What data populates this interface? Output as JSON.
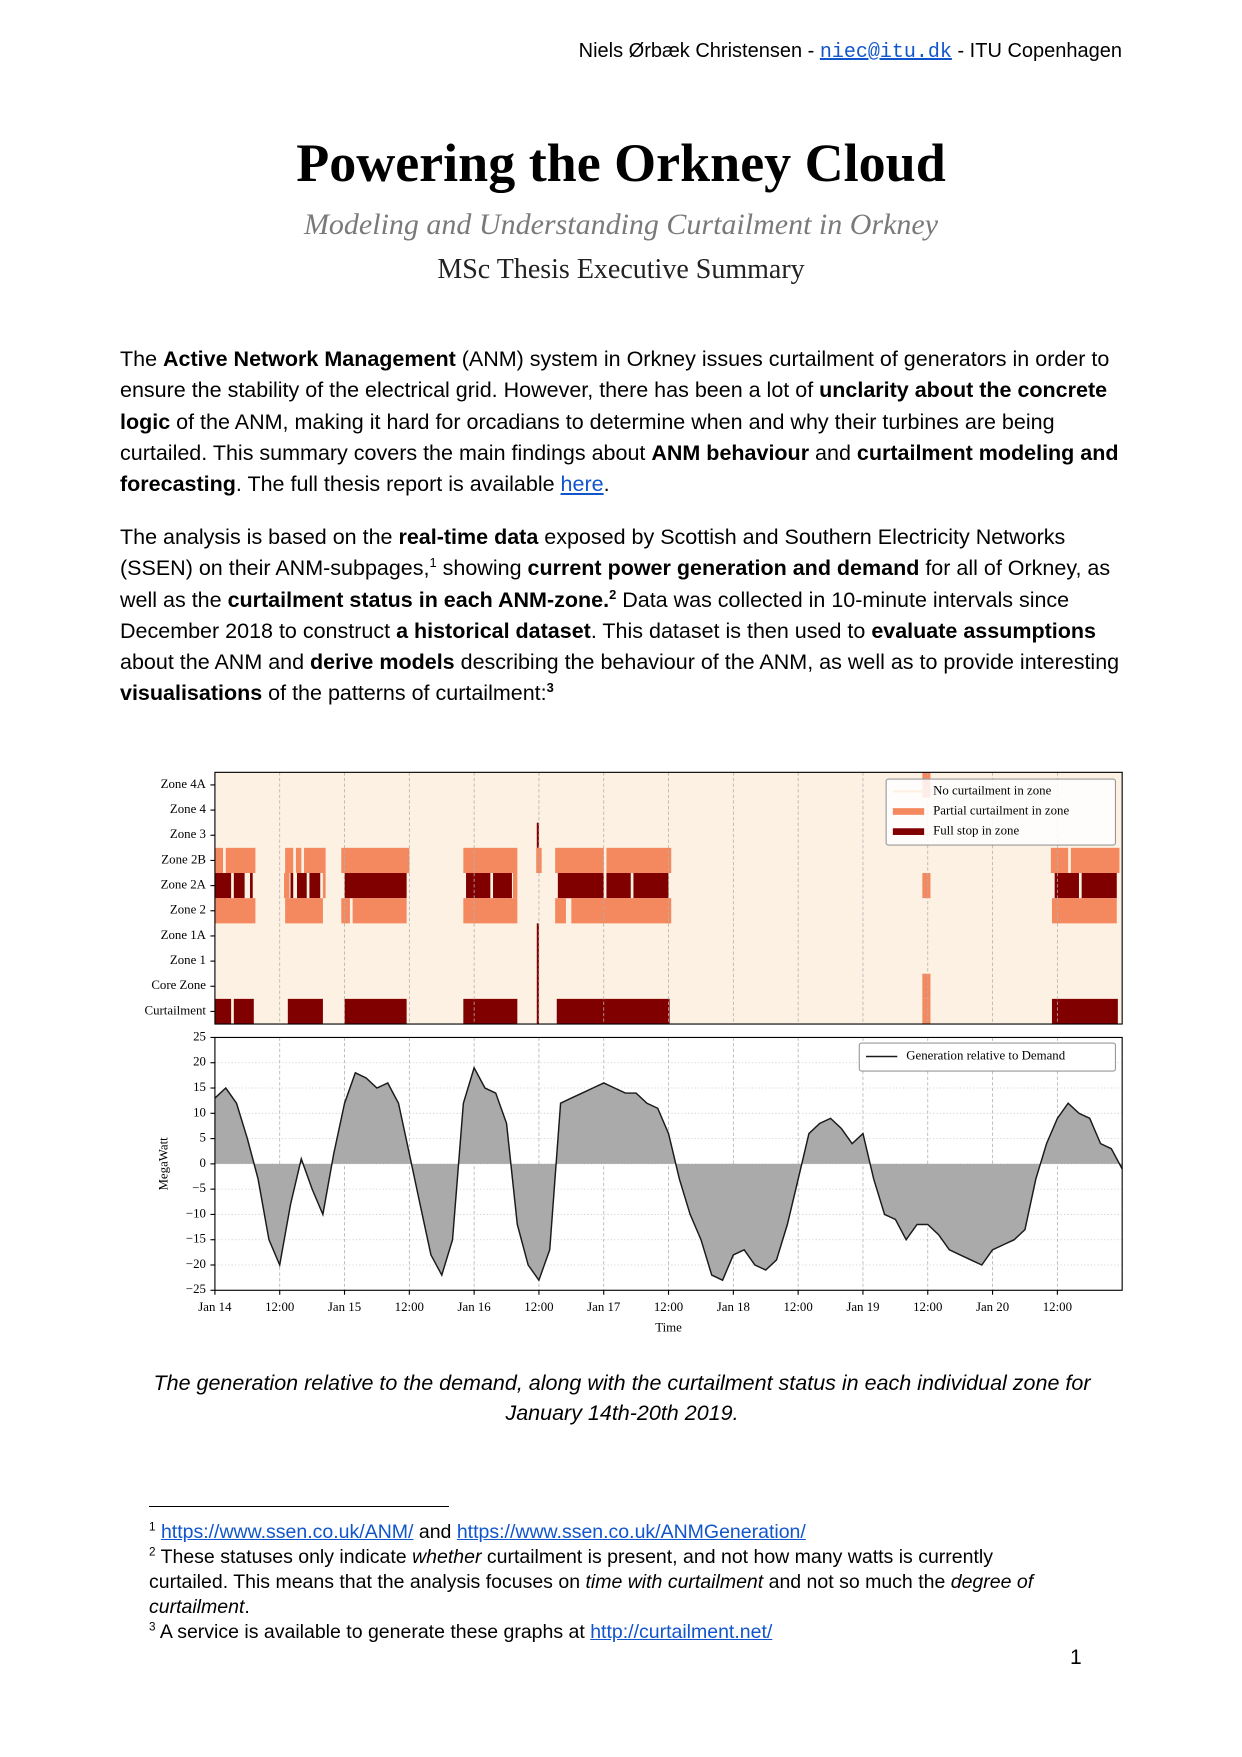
{
  "header": [
    {
      "text": "Niels Ørbæk Christensen - "
    },
    {
      "text": "niec@itu.dk",
      "link": true,
      "mono": true
    },
    {
      "text": " - ITU Copenhagen"
    }
  ],
  "title": "Powering the Orkney Cloud",
  "subtitle": "Modeling and Understanding Curtailment in Orkney",
  "kicker": "MSc Thesis Executive Summary",
  "paragraphs": [
    [
      {
        "text": "The "
      },
      {
        "text": "Active Network Management",
        "bold": true
      },
      {
        "text": " (ANM) system in Orkney issues curtailment of generators in order to ensure the stability of the electrical grid. However, there has been a lot of "
      },
      {
        "text": "unclarity about the concrete logic",
        "bold": true
      },
      {
        "text": " of the ANM, making it hard for orcadians to determine when and why their turbines are being curtailed. This summary covers the main findings about "
      },
      {
        "text": "ANM behaviour",
        "bold": true
      },
      {
        "text": " and "
      },
      {
        "text": "curtailment modeling and forecasting",
        "bold": true
      },
      {
        "text": ". The full thesis report is available "
      },
      {
        "text": "here",
        "link": true
      },
      {
        "text": "."
      }
    ],
    [
      {
        "text": "The analysis is based on the "
      },
      {
        "text": "real-time data",
        "bold": true
      },
      {
        "text": " exposed by Scottish and Southern Electricity Networks (SSEN) on their ANM-subpages,"
      },
      {
        "text": "1",
        "sup": true
      },
      {
        "text": " showing "
      },
      {
        "text": "current power generation and demand",
        "bold": true
      },
      {
        "text": " for all of Orkney, as well as the "
      },
      {
        "text": "curtailment status in each ANM-zone.",
        "bold": true
      },
      {
        "text": "2",
        "sup": true,
        "bold": true
      },
      {
        "text": " Data was collected in 10-minute intervals since December 2018 to construct "
      },
      {
        "text": "a historical dataset",
        "bold": true
      },
      {
        "text": ". This dataset is then used to "
      },
      {
        "text": "evaluate assumptions",
        "bold": true
      },
      {
        "text": " about the ANM and "
      },
      {
        "text": "derive models",
        "bold": true
      },
      {
        "text": " describing the behaviour of the ANM, as well as to provide interesting "
      },
      {
        "text": "visualisations",
        "bold": true
      },
      {
        "text": " of the patterns of curtailment:"
      },
      {
        "text": "3",
        "sup": true,
        "bold": true
      }
    ]
  ],
  "chart_data": [
    {
      "type": "heatmap",
      "xlim": [
        0,
        168
      ],
      "xticks": [
        0,
        12,
        24,
        36,
        48,
        60,
        72,
        84,
        96,
        108,
        120,
        132,
        144,
        156
      ],
      "grid": true,
      "legend": [
        {
          "name": "No curtailment in zone",
          "status": 0,
          "color": "#fdf1e3"
        },
        {
          "name": "Partial curtailment in zone",
          "status": 1,
          "color": "#f4895f"
        },
        {
          "name": "Full stop in zone",
          "status": 2,
          "color": "#800000"
        }
      ],
      "rows": [
        {
          "name": "Zone 4A",
          "intervals": [
            [
              131,
              132.5,
              1
            ]
          ]
        },
        {
          "name": "Zone 4",
          "intervals": []
        },
        {
          "name": "Zone 3",
          "intervals": [
            [
              59.6,
              60,
              2
            ]
          ]
        },
        {
          "name": "Zone 2B",
          "intervals": [
            [
              0,
              1.5,
              1
            ],
            [
              2,
              7.5,
              1
            ],
            [
              13,
              14.5,
              1
            ],
            [
              15,
              16,
              1
            ],
            [
              16.5,
              20.5,
              1
            ],
            [
              23.4,
              36,
              1
            ],
            [
              46,
              56,
              1
            ],
            [
              59.5,
              60.5,
              1
            ],
            [
              63,
              72,
              1
            ],
            [
              72.5,
              84.5,
              1
            ],
            [
              154.8,
              158,
              1
            ],
            [
              158.5,
              167.5,
              1
            ]
          ]
        },
        {
          "name": "Zone 2A",
          "intervals": [
            [
              0,
              3,
              2
            ],
            [
              3.5,
              5.5,
              2
            ],
            [
              6.5,
              7,
              2
            ],
            [
              12.8,
              13.8,
              1
            ],
            [
              14,
              14.5,
              2
            ],
            [
              15.2,
              17,
              2
            ],
            [
              17.5,
              19.5,
              2
            ],
            [
              20,
              20.5,
              1
            ],
            [
              24,
              35.5,
              2
            ],
            [
              46.5,
              51,
              2
            ],
            [
              51.5,
              55,
              2
            ],
            [
              55.2,
              56,
              1
            ],
            [
              63.5,
              72,
              2
            ],
            [
              72.5,
              77,
              2
            ],
            [
              77.5,
              84,
              2
            ],
            [
              131,
              132.5,
              1
            ],
            [
              155.5,
              160,
              2
            ],
            [
              160.5,
              167,
              2
            ]
          ]
        },
        {
          "name": "Zone 2",
          "intervals": [
            [
              0,
              7.5,
              1
            ],
            [
              13,
              20,
              1
            ],
            [
              23.4,
              25,
              1
            ],
            [
              25.5,
              35.5,
              1
            ],
            [
              46,
              56,
              1
            ],
            [
              63,
              65,
              1
            ],
            [
              66,
              84.5,
              1
            ],
            [
              155,
              167,
              1
            ]
          ]
        },
        {
          "name": "Zone 1A",
          "intervals": [
            [
              59.6,
              60,
              2
            ]
          ]
        },
        {
          "name": "Zone 1",
          "intervals": [
            [
              59.6,
              60,
              2
            ]
          ]
        },
        {
          "name": "Core Zone",
          "intervals": [
            [
              59.6,
              60,
              2
            ],
            [
              131,
              132.5,
              1
            ]
          ]
        },
        {
          "name": "Curtailment",
          "intervals": [
            [
              0,
              3,
              2
            ],
            [
              3.5,
              7.2,
              2
            ],
            [
              13.5,
              20,
              2
            ],
            [
              24,
              35.5,
              2
            ],
            [
              46,
              56,
              2
            ],
            [
              59.6,
              60,
              2
            ],
            [
              63.3,
              84.2,
              2
            ],
            [
              131,
              132.5,
              1
            ],
            [
              155,
              167.2,
              2
            ]
          ]
        }
      ]
    },
    {
      "type": "area",
      "xlabel": "Time",
      "ylabel": "MegaWatt",
      "xlim": [
        0,
        168
      ],
      "ylim": [
        -25,
        25
      ],
      "grid": true,
      "xticks": [
        {
          "value": 0,
          "label": "Jan 14"
        },
        {
          "value": 12,
          "label": "12:00"
        },
        {
          "value": 24,
          "label": "Jan 15"
        },
        {
          "value": 36,
          "label": "12:00"
        },
        {
          "value": 48,
          "label": "Jan 16"
        },
        {
          "value": 60,
          "label": "12:00"
        },
        {
          "value": 72,
          "label": "Jan 17"
        },
        {
          "value": 84,
          "label": "12:00"
        },
        {
          "value": 96,
          "label": "Jan 18"
        },
        {
          "value": 108,
          "label": "12:00"
        },
        {
          "value": 120,
          "label": "Jan 19"
        },
        {
          "value": 132,
          "label": "12:00"
        },
        {
          "value": 144,
          "label": "Jan 20"
        },
        {
          "value": 156,
          "label": "12:00"
        }
      ],
      "yticks": [
        {
          "value": -25,
          "label": "−25"
        },
        {
          "value": -20,
          "label": "−20"
        },
        {
          "value": -15,
          "label": "−15"
        },
        {
          "value": -10,
          "label": "−10"
        },
        {
          "value": -5,
          "label": "−5"
        },
        0,
        5,
        10,
        15,
        20,
        25
      ],
      "x": [
        0,
        2,
        4,
        6,
        8,
        10,
        12,
        14,
        16,
        18,
        20,
        22,
        24,
        26,
        28,
        30,
        32,
        34,
        36,
        38,
        40,
        42,
        44,
        46,
        48,
        50,
        52,
        54,
        56,
        58,
        60,
        62,
        64,
        66,
        68,
        70,
        72,
        74,
        76,
        78,
        80,
        82,
        84,
        86,
        88,
        90,
        92,
        94,
        96,
        98,
        100,
        102,
        104,
        106,
        108,
        110,
        112,
        114,
        116,
        118,
        120,
        122,
        124,
        126,
        128,
        130,
        132,
        134,
        136,
        138,
        140,
        142,
        144,
        146,
        148,
        150,
        152,
        154,
        156,
        158,
        160,
        162,
        164,
        166,
        168
      ],
      "series": [
        {
          "name": "Generation relative to Demand",
          "color": "#1a1a1a",
          "fill": "#aaaaaa",
          "values": [
            13,
            15,
            12,
            5,
            -3,
            -15,
            -20,
            -8,
            1,
            -5,
            -10,
            2,
            12,
            18,
            17,
            15,
            16,
            12,
            2,
            -8,
            -18,
            -22,
            -15,
            12,
            19,
            15,
            14,
            8,
            -12,
            -20,
            -23,
            -17,
            12,
            13,
            14,
            15,
            16,
            15,
            14,
            14,
            12,
            11,
            6,
            -3,
            -10,
            -15,
            -22,
            -23,
            -18,
            -17,
            -20,
            -21,
            -19,
            -12,
            -3,
            6,
            8,
            9,
            7,
            4,
            6,
            -3,
            -10,
            -11,
            -15,
            -12,
            -12,
            -14,
            -17,
            -18,
            -19,
            -20,
            -17,
            -16,
            -15,
            -13,
            -3,
            4,
            9,
            12,
            10,
            9,
            4,
            3,
            -1
          ]
        }
      ]
    }
  ],
  "caption": "The generation relative to the demand, along with the curtailment status in each individual zone for January 14th-20th 2019.",
  "footnotes": [
    [
      {
        "text": "1",
        "sup": true
      },
      {
        "text": " "
      },
      {
        "text": "https://www.ssen.co.uk/ANM/",
        "link": true
      },
      {
        "text": " and "
      },
      {
        "text": "https://www.ssen.co.uk/ANMGeneration/",
        "link": true
      }
    ],
    [
      {
        "text": "2",
        "sup": true
      },
      {
        "text": " These statuses only indicate "
      },
      {
        "text": "whether",
        "italic": true
      },
      {
        "text": " curtailment is present, and not how many watts is currently curtailed. This means that the analysis focuses on "
      },
      {
        "text": "time with curtailment",
        "italic": true
      },
      {
        "text": " and not so much the "
      },
      {
        "text": "degree of curtailment",
        "italic": true
      },
      {
        "text": "."
      }
    ],
    [
      {
        "text": "3",
        "sup": true
      },
      {
        "text": " A service is available to generate these graphs at "
      },
      {
        "text": "http://curtailment.net/",
        "link": true
      }
    ]
  ],
  "page_number": 1
}
